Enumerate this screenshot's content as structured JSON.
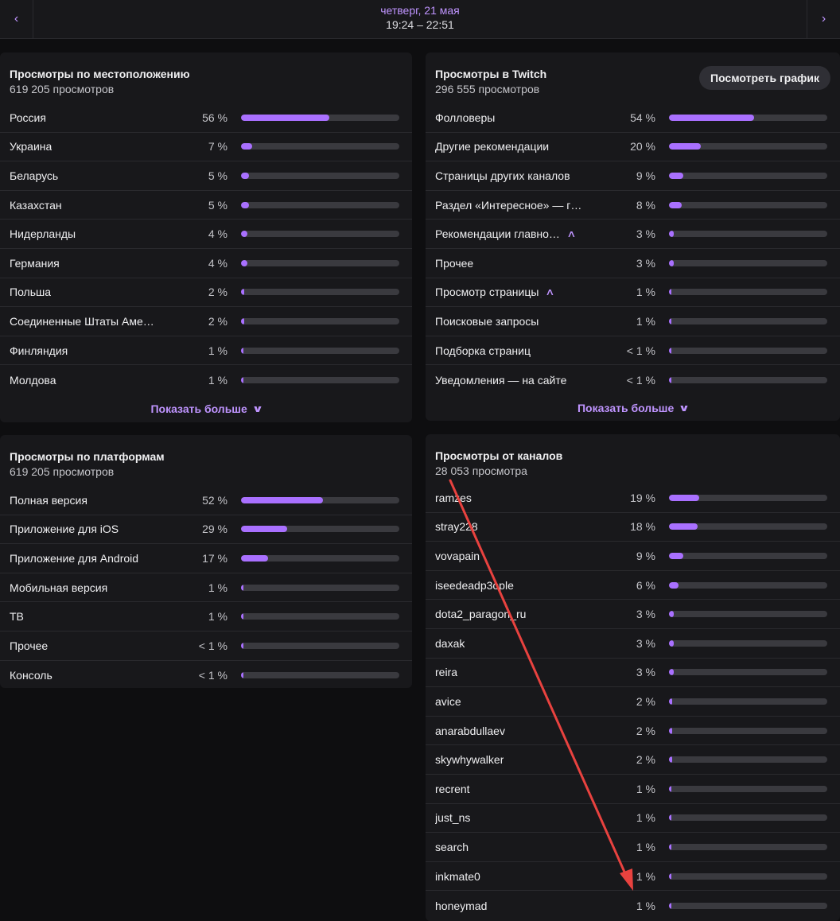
{
  "header": {
    "date": "четверг, 21 мая",
    "time": "19:24 – 22:51",
    "prev_icon": "‹",
    "next_icon": "›"
  },
  "location": {
    "title": "Просмотры по местоположению",
    "subtitle": "619 205 просмотров",
    "show_more": "Показать больше",
    "rows": [
      {
        "label": "Россия",
        "pct": "56 %",
        "value": 0.56
      },
      {
        "label": "Украина",
        "pct": "7 %",
        "value": 0.07
      },
      {
        "label": "Беларусь",
        "pct": "5 %",
        "value": 0.05
      },
      {
        "label": "Казахстан",
        "pct": "5 %",
        "value": 0.05
      },
      {
        "label": "Нидерланды",
        "pct": "4 %",
        "value": 0.04
      },
      {
        "label": "Германия",
        "pct": "4 %",
        "value": 0.04
      },
      {
        "label": "Польша",
        "pct": "2 %",
        "value": 0.02
      },
      {
        "label": "Соединенные Штаты Аме…",
        "pct": "2 %",
        "value": 0.02
      },
      {
        "label": "Финляндия",
        "pct": "1 %",
        "value": 0.01
      },
      {
        "label": "Молдова",
        "pct": "1 %",
        "value": 0.01
      }
    ]
  },
  "twitch": {
    "title": "Просмотры в Twitch",
    "subtitle": "296 555 просмотров",
    "graph_button": "Посмотреть график",
    "show_more": "Показать больше",
    "rows": [
      {
        "label": "Фолловеры",
        "pct": "54 %",
        "value": 0.54,
        "expand": false
      },
      {
        "label": "Другие рекомендации",
        "pct": "20 %",
        "value": 0.2,
        "expand": false
      },
      {
        "label": "Страницы других каналов",
        "pct": "9 %",
        "value": 0.09,
        "expand": false
      },
      {
        "label": "Раздел «Интересное» — г…",
        "pct": "8 %",
        "value": 0.08,
        "expand": false
      },
      {
        "label": "Рекомендации главно…",
        "pct": "3 %",
        "value": 0.03,
        "expand": true
      },
      {
        "label": "Прочее",
        "pct": "3 %",
        "value": 0.03,
        "expand": false
      },
      {
        "label": "Просмотр страницы",
        "pct": "1 %",
        "value": 0.01,
        "expand": true
      },
      {
        "label": "Поисковые запросы",
        "pct": "1 %",
        "value": 0.01,
        "expand": false
      },
      {
        "label": "Подборка страниц",
        "pct": "< 1 %",
        "value": 0.005,
        "expand": false
      },
      {
        "label": "Уведомления — на сайте",
        "pct": "< 1 %",
        "value": 0.005,
        "expand": false
      }
    ]
  },
  "platforms": {
    "title": "Просмотры по платформам",
    "subtitle": "619 205 просмотров",
    "rows": [
      {
        "label": "Полная версия",
        "pct": "52 %",
        "value": 0.52
      },
      {
        "label": "Приложение для iOS",
        "pct": "29 %",
        "value": 0.29
      },
      {
        "label": "Приложение для Android",
        "pct": "17 %",
        "value": 0.17
      },
      {
        "label": "Мобильная версия",
        "pct": "1 %",
        "value": 0.01
      },
      {
        "label": "ТВ",
        "pct": "1 %",
        "value": 0.01
      },
      {
        "label": "Прочее",
        "pct": "< 1 %",
        "value": 0.005
      },
      {
        "label": "Консоль",
        "pct": "< 1 %",
        "value": 0.005
      }
    ]
  },
  "channels": {
    "title": "Просмотры от каналов",
    "subtitle": "28 053 просмотра",
    "rows": [
      {
        "label": "ramzes",
        "pct": "19 %",
        "value": 0.19
      },
      {
        "label": "stray228",
        "pct": "18 %",
        "value": 0.18
      },
      {
        "label": "vovapain",
        "pct": "9 %",
        "value": 0.09
      },
      {
        "label": "iseedeadp3ople",
        "pct": "6 %",
        "value": 0.06
      },
      {
        "label": "dota2_paragon_ru",
        "pct": "3 %",
        "value": 0.03
      },
      {
        "label": "daxak",
        "pct": "3 %",
        "value": 0.03
      },
      {
        "label": "reira",
        "pct": "3 %",
        "value": 0.03
      },
      {
        "label": "avice",
        "pct": "2 %",
        "value": 0.02
      },
      {
        "label": "anarabdullaev",
        "pct": "2 %",
        "value": 0.02
      },
      {
        "label": "skywhywalker",
        "pct": "2 %",
        "value": 0.02
      },
      {
        "label": "recrent",
        "pct": "1 %",
        "value": 0.01
      },
      {
        "label": "just_ns",
        "pct": "1 %",
        "value": 0.01
      },
      {
        "label": "search",
        "pct": "1 %",
        "value": 0.01
      },
      {
        "label": "inkmate0",
        "pct": "1 %",
        "value": 0.01
      },
      {
        "label": "honeymad",
        "pct": "1 %",
        "value": 0.01
      }
    ]
  },
  "annotation": {
    "arrow_color": "#e8423f"
  }
}
